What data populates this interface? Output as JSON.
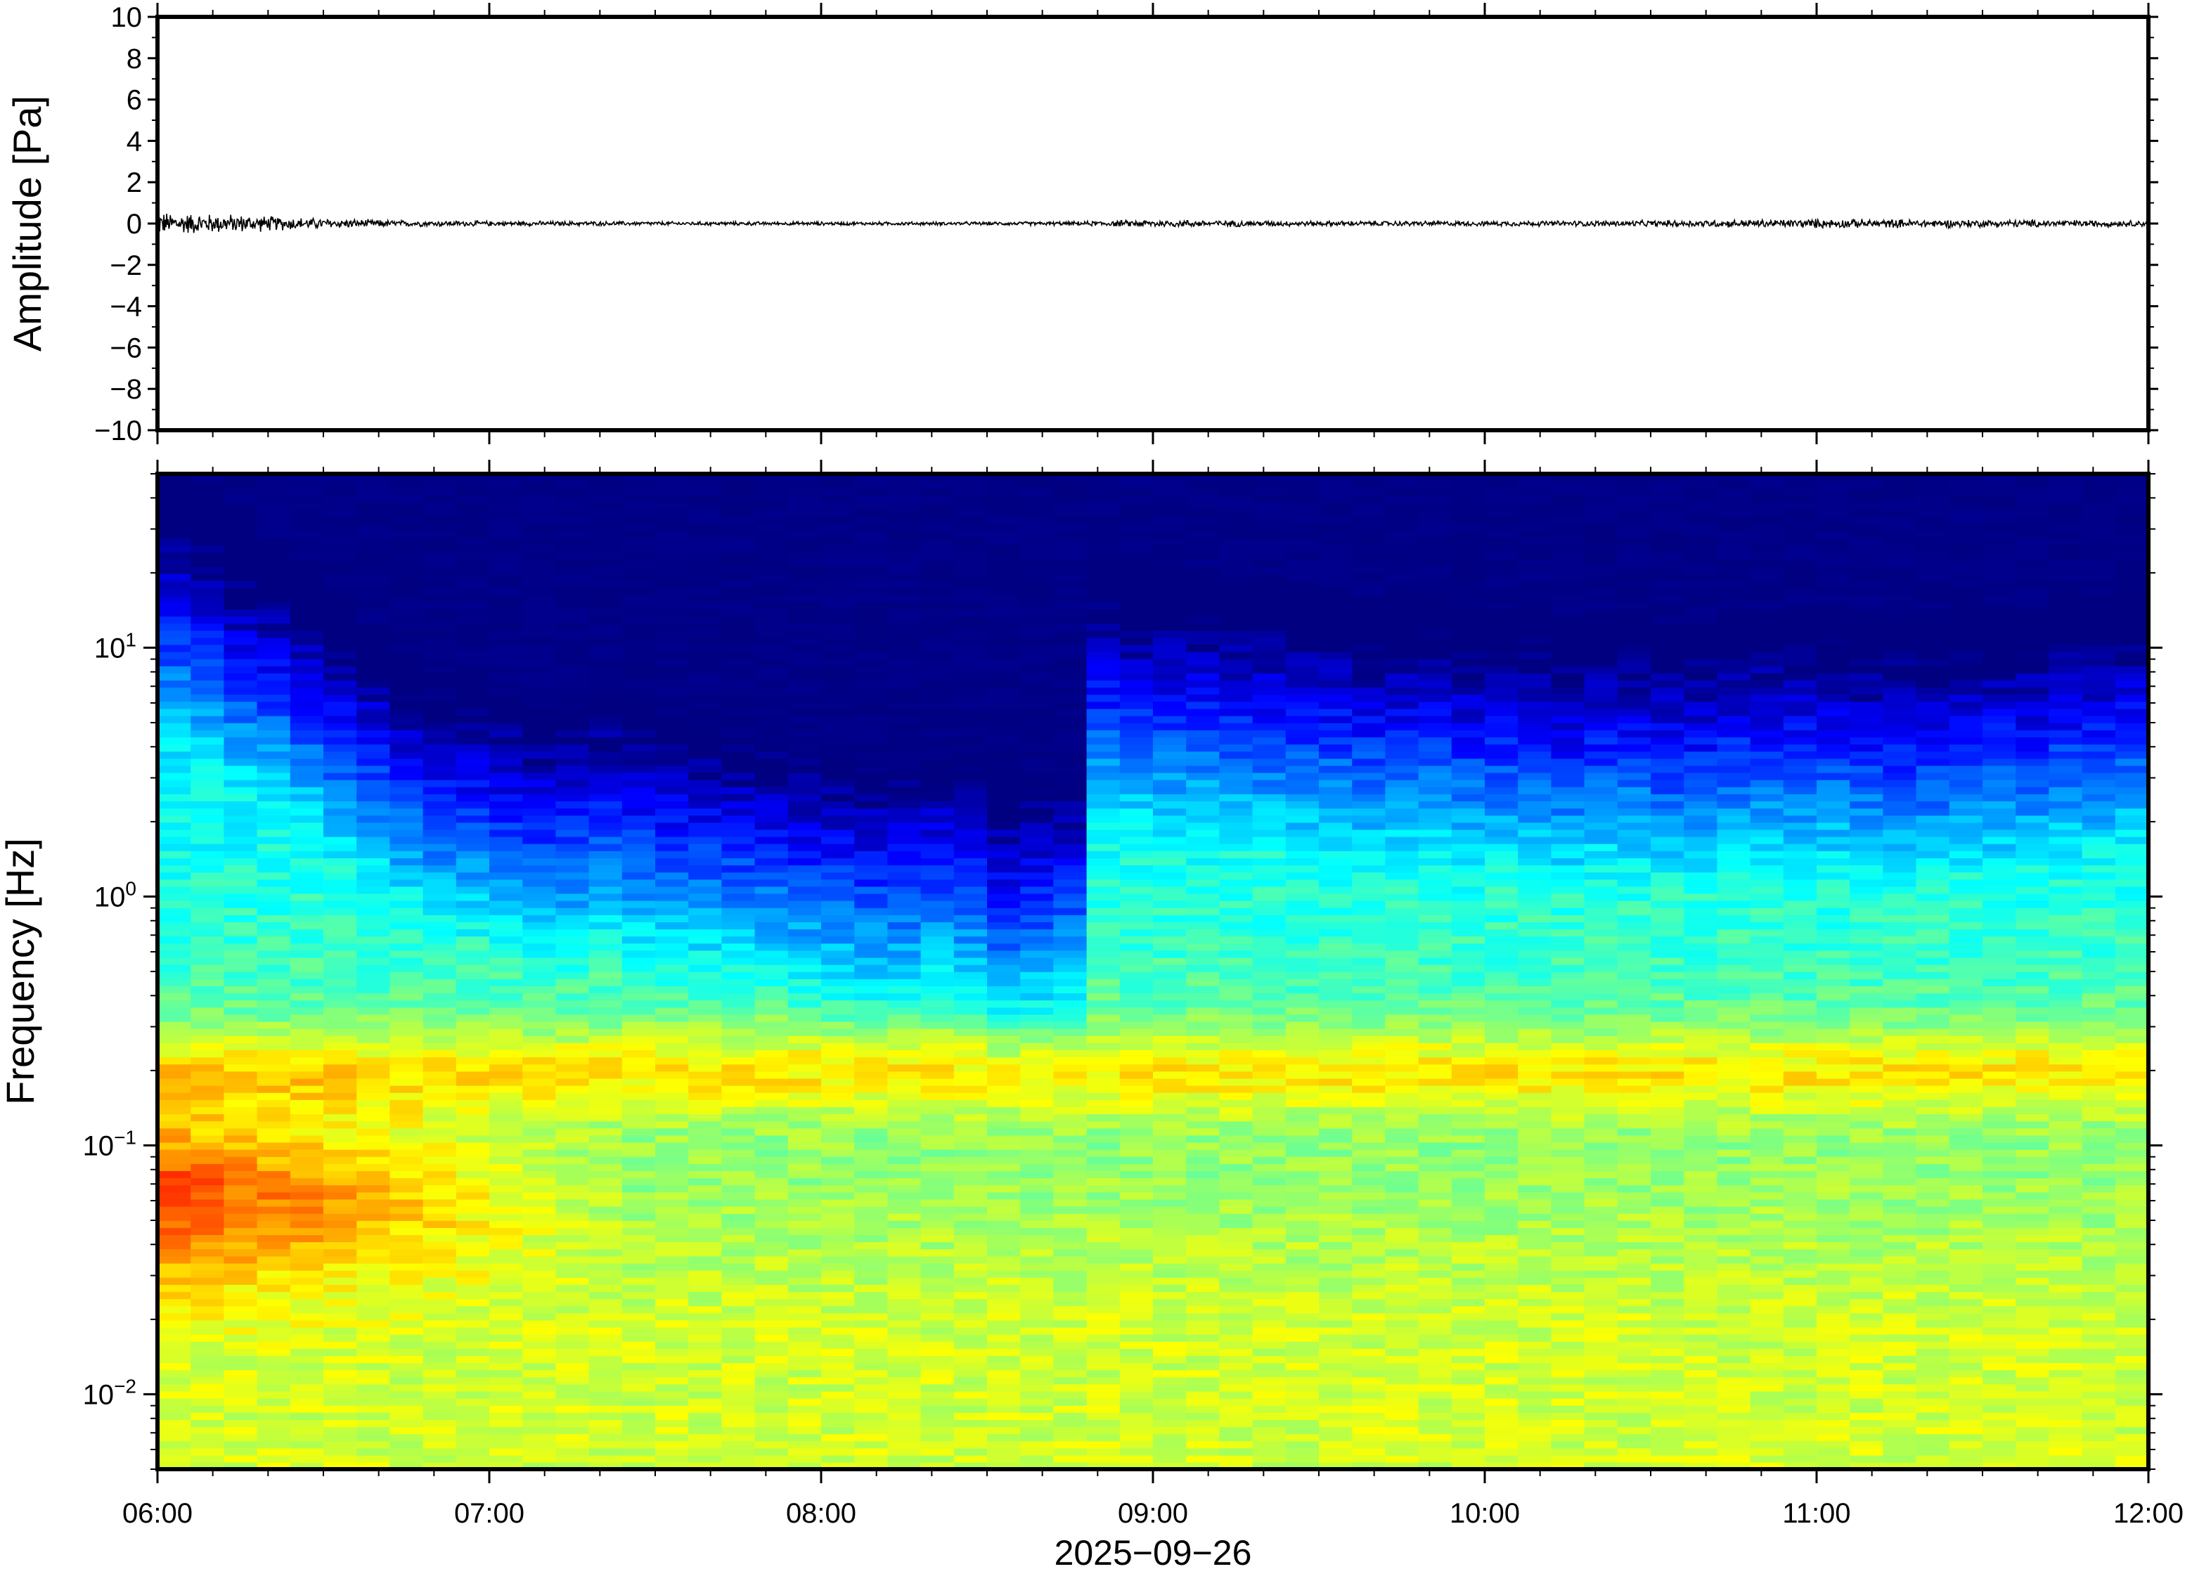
{
  "chart_data": [
    {
      "type": "line",
      "ylabel": "Amplitude [Pa]",
      "ylim": [
        -10,
        10
      ],
      "yticks": [
        "10",
        "8",
        "6",
        "4",
        "2",
        "0",
        "−2",
        "−4",
        "−6",
        "−8",
        "−10"
      ],
      "xlim": [
        "06:00",
        "12:00"
      ],
      "grid": false,
      "series": [
        {
          "x_hours": [
            6.0,
            6.25,
            6.5,
            6.75,
            7.0,
            7.5,
            8.0,
            8.5,
            8.75,
            9.0,
            9.5,
            10.0,
            10.5,
            11.0,
            11.5,
            12.0
          ],
          "amplitude_envelope": [
            0.45,
            0.35,
            0.2,
            0.12,
            0.1,
            0.08,
            0.07,
            0.07,
            0.08,
            0.15,
            0.1,
            0.1,
            0.12,
            0.18,
            0.15,
            0.12
          ],
          "color": "#000000"
        }
      ]
    },
    {
      "type": "heatmap",
      "ylabel": "Frequency [Hz]",
      "xlabel": "2025−09−26",
      "xticks": [
        "06:00",
        "07:00",
        "08:00",
        "09:00",
        "10:00",
        "11:00",
        "12:00"
      ],
      "yscale": "log",
      "yticks": [
        {
          "base": "10",
          "exp": "1"
        },
        {
          "base": "10",
          "exp": "0"
        },
        {
          "base": "10",
          "exp": "−1"
        },
        {
          "base": "10",
          "exp": "−2"
        }
      ],
      "ylim_hz": [
        0.005,
        50
      ],
      "colormap": "jet",
      "time_bins_hours": [
        6.0,
        6.1,
        6.2,
        6.3,
        6.4,
        6.5,
        6.6,
        6.7,
        6.8,
        6.9,
        7.0,
        7.1,
        7.2,
        7.3,
        7.4,
        7.5,
        7.6,
        7.7,
        7.8,
        7.9,
        8.0,
        8.1,
        8.2,
        8.3,
        8.4,
        8.5,
        8.6,
        8.7,
        8.8,
        8.9,
        9.0,
        9.1,
        9.2,
        9.3,
        9.4,
        9.5,
        9.6,
        9.7,
        9.8,
        9.9,
        10.0,
        10.1,
        10.2,
        10.3,
        10.4,
        10.5,
        10.6,
        10.7,
        10.8,
        10.9,
        11.0,
        11.1,
        11.2,
        11.3,
        11.4,
        11.5,
        11.6,
        11.7,
        11.8,
        11.9
      ],
      "high_freq_cutoff_hz": [
        35,
        30,
        22,
        18,
        14,
        10,
        8,
        6,
        5,
        4.5,
        4,
        3.5,
        3.5,
        4,
        3.5,
        3.2,
        3,
        2.8,
        2.6,
        2.4,
        2.2,
        2,
        2,
        2.2,
        2,
        1.4,
        1.6,
        1.8,
        15,
        14,
        13,
        13,
        12,
        12,
        11,
        11,
        10,
        10,
        10,
        9,
        9,
        9,
        8,
        9,
        9,
        8,
        8,
        9,
        9,
        9,
        9,
        8,
        8,
        8,
        9,
        9,
        9,
        10,
        10,
        11
      ]
    }
  ]
}
